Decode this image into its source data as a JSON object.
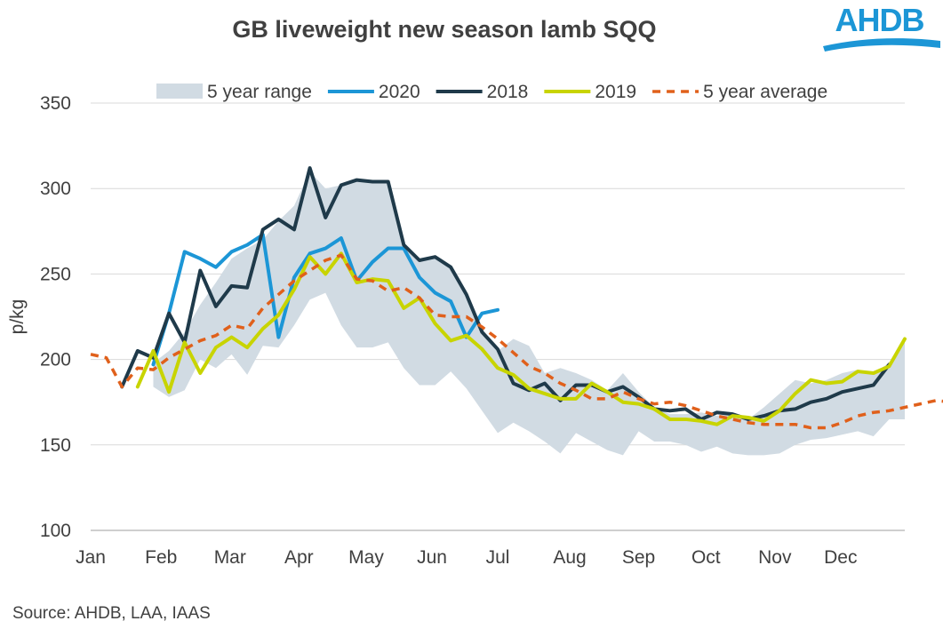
{
  "title": "GB liveweight new season lamb SQQ",
  "logo": {
    "text": "AHDB",
    "color": "#1c96d6"
  },
  "source": "Source: AHDB, LAA, IAAS",
  "chart_data": {
    "type": "line",
    "title": "GB liveweight new season lamb SQQ",
    "ylabel": "p/kg",
    "xlabel": "",
    "ylim": [
      100,
      350
    ],
    "yticks": [
      100,
      150,
      200,
      250,
      300,
      350
    ],
    "xlim": [
      1,
      53
    ],
    "month_ticks": [
      {
        "label": "Jan",
        "week": 1
      },
      {
        "label": "Feb",
        "week": 5.5
      },
      {
        "label": "Mar",
        "week": 9.9
      },
      {
        "label": "Apr",
        "week": 14.3
      },
      {
        "label": "May",
        "week": 18.6
      },
      {
        "label": "Jun",
        "week": 22.8
      },
      {
        "label": "Jul",
        "week": 27
      },
      {
        "label": "Aug",
        "week": 31.6
      },
      {
        "label": "Sep",
        "week": 36
      },
      {
        "label": "Oct",
        "week": 40.3
      },
      {
        "label": "Nov",
        "week": 44.7
      },
      {
        "label": "Dec",
        "week": 48.9
      }
    ],
    "grid": true,
    "legend_position": "top",
    "legend": [
      {
        "name": "5 year range",
        "kind": "area",
        "color": "#d1dbe3"
      },
      {
        "name": "2020",
        "kind": "line",
        "color": "#1c96d6"
      },
      {
        "name": "2018",
        "kind": "line",
        "color": "#1f3a4a"
      },
      {
        "name": "2019",
        "kind": "line",
        "color": "#c8d400"
      },
      {
        "name": "5 year average",
        "kind": "dash",
        "color": "#e0601b"
      }
    ],
    "range": {
      "weeks": [
        5,
        6,
        7,
        8,
        9,
        10,
        11,
        12,
        13,
        14,
        15,
        16,
        17,
        18,
        19,
        20,
        21,
        22,
        23,
        24,
        25,
        26,
        27,
        28,
        29,
        30,
        31,
        32,
        33,
        34,
        35,
        36,
        37,
        38,
        39,
        40,
        41,
        42,
        43,
        44,
        45,
        46,
        47,
        48,
        49,
        50,
        51,
        52,
        53
      ],
      "low": [
        184,
        178,
        182,
        200,
        195,
        203,
        191,
        208,
        207,
        220,
        235,
        239,
        220,
        207,
        207,
        210,
        195,
        185,
        185,
        193,
        183,
        170,
        157,
        163,
        158,
        152,
        145,
        157,
        152,
        147,
        144,
        158,
        152,
        152,
        150,
        146,
        149,
        145,
        144,
        144,
        145,
        150,
        153,
        154,
        156,
        158,
        155,
        165,
        165
      ],
      "high": [
        198,
        205,
        216,
        232,
        245,
        259,
        265,
        270,
        281,
        290,
        310,
        300,
        302,
        305,
        303,
        303,
        265,
        258,
        260,
        253,
        240,
        218,
        205,
        212,
        208,
        192,
        195,
        192,
        188,
        182,
        192,
        181,
        172,
        168,
        168,
        169,
        167,
        169,
        165,
        172,
        180,
        188,
        186,
        188,
        192,
        194,
        192,
        198,
        212
      ]
    },
    "series": [
      {
        "name": "2020",
        "color": "#1c96d6",
        "start_week": 5,
        "values": [
          197,
          227,
          263,
          259,
          254,
          263,
          267,
          273,
          213,
          248,
          262,
          265,
          271,
          246,
          257,
          265,
          265,
          248,
          239,
          234,
          213,
          227,
          229
        ]
      },
      {
        "name": "2018",
        "color": "#1f3a4a",
        "start_week": 3,
        "values": [
          184,
          205,
          201,
          227,
          210,
          252,
          231,
          243,
          242,
          276,
          282,
          276,
          312,
          283,
          302,
          305,
          304,
          304,
          267,
          258,
          260,
          254,
          238,
          216,
          206,
          186,
          182,
          186,
          176,
          185,
          185,
          181,
          184,
          178,
          171,
          170,
          171,
          165,
          169,
          168,
          165,
          167,
          170,
          171,
          175,
          177,
          181,
          183,
          185,
          197
        ]
      },
      {
        "name": "2019",
        "color": "#c8d400",
        "start_week": 4,
        "values": [
          184,
          205,
          181,
          210,
          192,
          207,
          213,
          207,
          218,
          226,
          241,
          260,
          250,
          262,
          245,
          247,
          246,
          230,
          236,
          221,
          211,
          214,
          206,
          195,
          191,
          183,
          180,
          177,
          177,
          186,
          181,
          175,
          174,
          171,
          165,
          165,
          164,
          162,
          167,
          166,
          164,
          170,
          180,
          188,
          186,
          187,
          193,
          192,
          196,
          212
        ]
      },
      {
        "name": "5 year average",
        "color": "#e0601b",
        "start_week": 1,
        "dashed": true,
        "values": [
          203,
          201,
          184,
          195,
          194,
          201,
          206,
          211,
          214,
          220,
          218,
          230,
          238,
          246,
          252,
          258,
          261,
          247,
          246,
          240,
          242,
          236,
          226,
          225,
          225,
          219,
          212,
          204,
          196,
          192,
          186,
          182,
          177,
          177,
          181,
          177,
          174,
          175,
          173,
          170,
          167,
          165,
          163,
          162,
          162,
          162,
          160,
          160,
          163,
          167,
          169,
          170,
          172,
          174,
          176,
          175,
          175,
          180,
          186
        ]
      }
    ]
  }
}
